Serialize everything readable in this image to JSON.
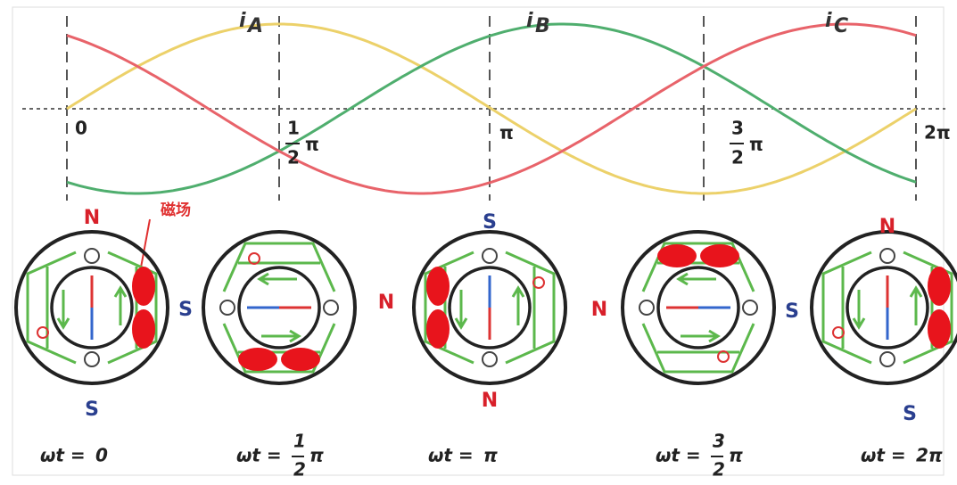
{
  "graph": {
    "curve_labels": [
      {
        "main": "i",
        "sub": "A"
      },
      {
        "main": "i",
        "sub": "B"
      },
      {
        "main": "i",
        "sub": "C"
      }
    ],
    "axis_labels": [
      {
        "text": "0"
      },
      {
        "num": "1",
        "den": "2",
        "pi": "π"
      },
      {
        "text": "π"
      },
      {
        "num": "3",
        "den": "2",
        "pi": "π"
      },
      {
        "text": "2π"
      }
    ]
  },
  "annotation": "磁场",
  "motors": [
    {
      "poles": [
        "N",
        "S",
        "S"
      ],
      "caption": {
        "prefix": "ωt =",
        "text": "0"
      }
    },
    {
      "poles": [
        "N"
      ],
      "caption": {
        "prefix": "ωt =",
        "num": "1",
        "den": "2",
        "pi": "π"
      }
    },
    {
      "poles": [
        "S",
        "N"
      ],
      "caption": {
        "prefix": "ωt =",
        "text": "π"
      }
    },
    {
      "poles": [
        "N",
        "S"
      ],
      "caption": {
        "prefix": "ωt =",
        "num": "3",
        "den": "2",
        "pi": "π"
      }
    },
    {
      "poles": [
        "N",
        "S"
      ],
      "caption": {
        "prefix": "ωt =",
        "text": "2π"
      }
    }
  ]
}
